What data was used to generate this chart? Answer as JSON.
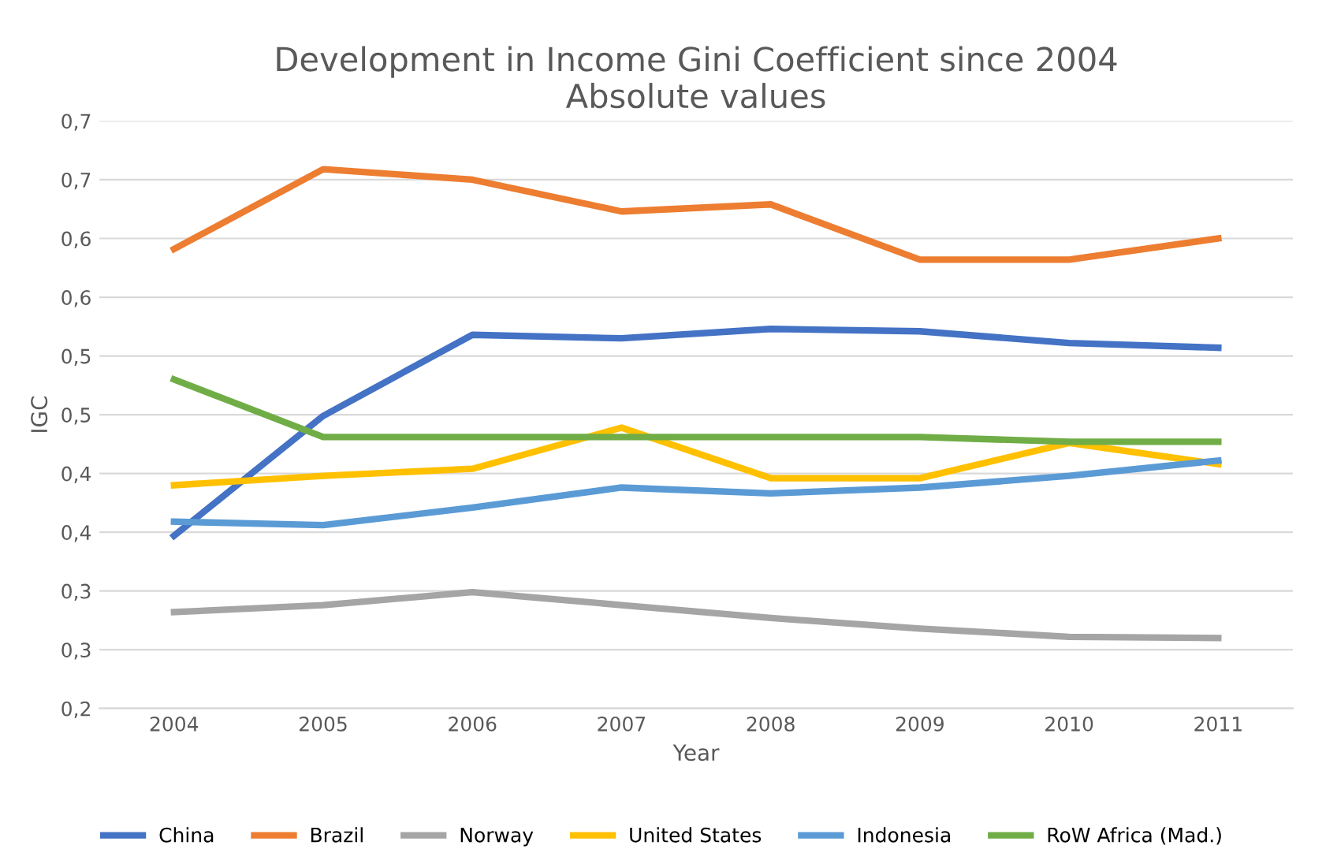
{
  "chart_data": {
    "type": "line",
    "title": "Development in Income Gini Coefficient since 2004\nAbsolute values",
    "xlabel": "Year",
    "ylabel": "IGC",
    "categories": [
      "2004",
      "2005",
      "2006",
      "2007",
      "2008",
      "2009",
      "2010",
      "2011"
    ],
    "series": [
      {
        "name": "China",
        "color": "#4472c4",
        "values": [
          0.347,
          0.449,
          0.518,
          0.515,
          0.523,
          0.521,
          0.511,
          0.507
        ]
      },
      {
        "name": "Brazil",
        "color": "#ed7d31",
        "values": [
          0.591,
          0.659,
          0.65,
          0.623,
          0.629,
          0.582,
          0.582,
          0.6
        ]
      },
      {
        "name": "Norway",
        "color": "#a5a5a5",
        "values": [
          0.282,
          0.288,
          0.299,
          0.288,
          0.277,
          0.268,
          0.261,
          0.26
        ]
      },
      {
        "name": "United States",
        "color": "#ffc000",
        "values": [
          0.39,
          0.398,
          0.404,
          0.439,
          0.396,
          0.396,
          0.426,
          0.408
        ]
      },
      {
        "name": "Indonesia",
        "color": "#5b9bd5",
        "values": [
          0.359,
          0.356,
          0.371,
          0.388,
          0.383,
          0.388,
          0.398,
          0.411
        ]
      },
      {
        "name": "RoW Africa (Mad.)",
        "color": "#70ad47",
        "values": [
          0.48,
          0.431,
          0.431,
          0.431,
          0.431,
          0.431,
          0.427,
          0.427
        ]
      }
    ],
    "ylim": [
      0.2,
      0.7
    ],
    "yticks": [
      {
        "value": 0.2,
        "label": "0,2"
      },
      {
        "value": 0.25,
        "label": "0,3"
      },
      {
        "value": 0.3,
        "label": "0,3"
      },
      {
        "value": 0.35,
        "label": "0,4"
      },
      {
        "value": 0.4,
        "label": "0,4"
      },
      {
        "value": 0.45,
        "label": "0,5"
      },
      {
        "value": 0.5,
        "label": "0,5"
      },
      {
        "value": 0.55,
        "label": "0,6"
      },
      {
        "value": 0.6,
        "label": "0,6"
      },
      {
        "value": 0.65,
        "label": "0,7"
      },
      {
        "value": 0.7,
        "label": "0,7"
      }
    ],
    "grid": "y",
    "legend": "bottom",
    "marker": "none",
    "line_style": "solid"
  }
}
